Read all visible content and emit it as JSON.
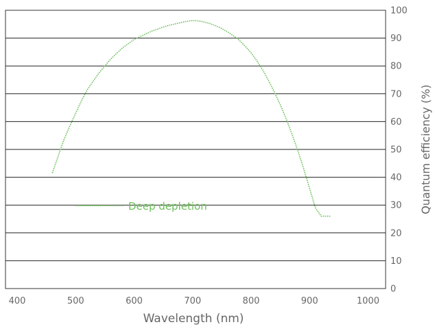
{
  "chart_data": {
    "type": "line",
    "title": "",
    "xlabel": "Wavelength (nm)",
    "ylabel": "Quantum efficiency (%)",
    "xlim": [
      380,
      1030
    ],
    "ylim": [
      0,
      100
    ],
    "x_ticks": [
      400,
      500,
      600,
      700,
      800,
      900,
      1000
    ],
    "y_ticks": [
      0,
      10,
      20,
      30,
      40,
      50,
      60,
      70,
      80,
      90,
      100
    ],
    "grid": "horizontal",
    "legend": {
      "placement": "bottom-left",
      "entries": [
        "Deep depletion"
      ]
    },
    "series": [
      {
        "name": "Deep depletion",
        "color": "#6bbf59",
        "line_style": "dotted",
        "x": [
          460,
          470,
          480,
          490,
          500,
          510,
          520,
          530,
          540,
          550,
          560,
          570,
          580,
          590,
          600,
          610,
          620,
          630,
          640,
          650,
          660,
          670,
          680,
          690,
          700,
          710,
          720,
          730,
          740,
          750,
          760,
          770,
          780,
          790,
          800,
          810,
          820,
          830,
          840,
          850,
          860,
          870,
          880,
          890,
          900,
          910,
          920,
          930,
          936
        ],
        "values": [
          41.5,
          47.5,
          53.5,
          58.5,
          63,
          67.5,
          71.5,
          74.5,
          77.5,
          80,
          82.5,
          84.5,
          86.5,
          88,
          89.5,
          90.5,
          91.5,
          92.5,
          93.2,
          94,
          94.6,
          95.1,
          95.6,
          96,
          96.3,
          96.2,
          95.8,
          95.2,
          94.4,
          93.4,
          92.2,
          90.8,
          89.2,
          87.1,
          84.7,
          81.8,
          78.5,
          74.7,
          70.5,
          66,
          61,
          55.5,
          49.5,
          43,
          36,
          29,
          26,
          26,
          26
        ]
      }
    ]
  }
}
